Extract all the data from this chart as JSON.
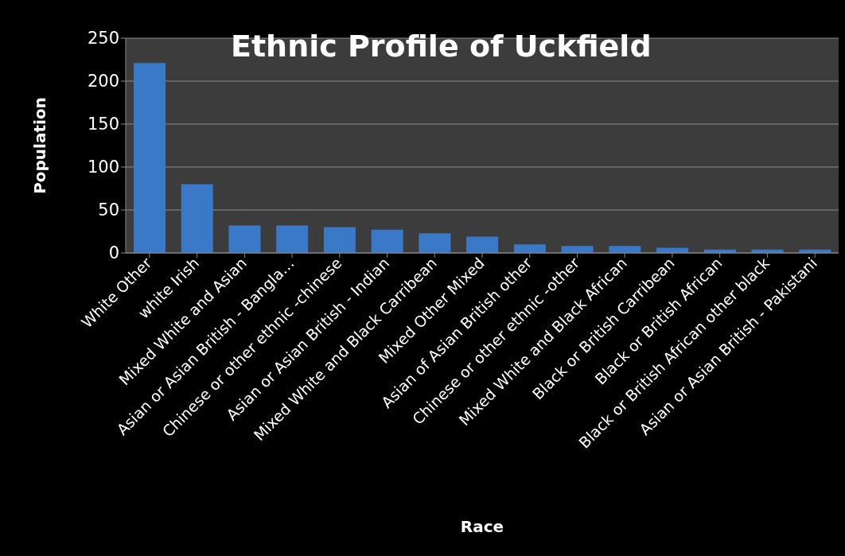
{
  "chart_data": {
    "type": "bar",
    "title": "Ethnic Profile of Uckfield",
    "xlabel": "Race",
    "ylabel": "Population",
    "categories": [
      "White Other",
      "white Irish",
      "Mixed White and Asian",
      "Asian or Asian British - Bangla…",
      "Chinese or other ethnic -chinese",
      "Asian or Asian British - Indian",
      "Mixed White and Black Carribean",
      "Mixed Other Mixed",
      "Asian of Asian British other",
      "Chinese or other ethnic -other",
      "Mixed White and Black African",
      "Black or British Carribean",
      "Black or British African",
      "Black or British African other black",
      "Asian or Asian British - Pakistani"
    ],
    "values": [
      221,
      80,
      32,
      32,
      30,
      27,
      23,
      19,
      10,
      8,
      8,
      6,
      4,
      4,
      4
    ],
    "color": "#3a78c8",
    "ylim": [
      0,
      250
    ],
    "yticks": [
      0,
      50,
      100,
      150,
      200,
      250
    ],
    "grid": "y"
  }
}
